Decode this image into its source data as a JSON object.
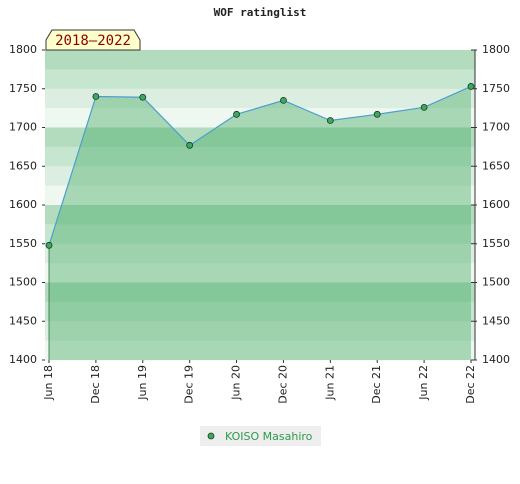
{
  "chart_data": {
    "type": "line",
    "title": "WOF ratinglist",
    "period_label": "2018–2022",
    "categories": [
      "Jun 18",
      "Dec 18",
      "Jun 19",
      "Dec 19",
      "Jun 20",
      "Dec 20",
      "Jun 21",
      "Dec 21",
      "Jun 22",
      "Dec 22"
    ],
    "series": [
      {
        "name": "KOISO Masahiro",
        "color": "#4a9fd0",
        "values": [
          1548,
          1740,
          1739,
          1677,
          1717,
          1735,
          1709,
          1717,
          1726,
          1753
        ]
      }
    ],
    "ylim": [
      1400,
      1800
    ],
    "yticks": [
      1400,
      1450,
      1500,
      1550,
      1600,
      1650,
      1700,
      1750,
      1800
    ],
    "y2lim": [
      1400,
      1800
    ],
    "y2ticks": [
      1400,
      1450,
      1500,
      1550,
      1600,
      1650,
      1700,
      1750,
      1800
    ]
  }
}
